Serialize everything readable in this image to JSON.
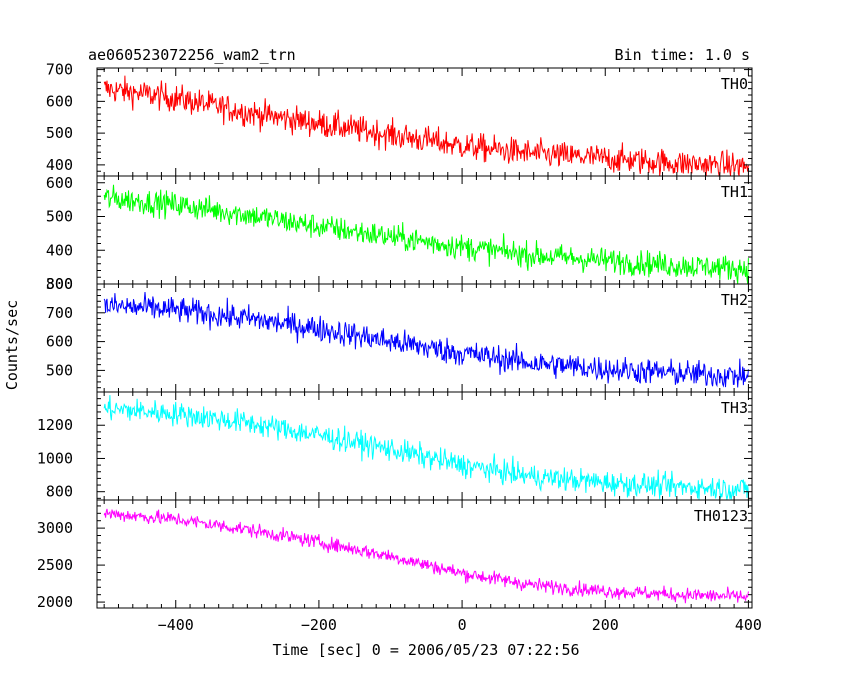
{
  "header": {
    "title": "ae060523072256_wam2_trn",
    "bin_time": "Bin time: 1.0 s"
  },
  "chart_data": {
    "type": "line",
    "xlabel": "Time [sec] 0 = 2006/05/23 07:22:56",
    "ylabel": "Counts/sec",
    "xlim": [
      -510,
      405
    ],
    "x_ticks": [
      -400,
      -200,
      0,
      200,
      400
    ],
    "x_tick_labels": [
      "−400",
      "−200",
      "0",
      "200",
      "400"
    ],
    "x_range": [
      -500,
      400
    ],
    "panels": [
      {
        "name": "TH0",
        "color": "#ff0000",
        "ylim": [
          365,
          705
        ],
        "y_ticks": [
          400,
          500,
          600,
          700
        ],
        "trend": [
          [
            -500,
            640
          ],
          [
            -400,
            610
          ],
          [
            -300,
            565
          ],
          [
            -200,
            530
          ],
          [
            -100,
            495
          ],
          [
            0,
            460
          ],
          [
            100,
            435
          ],
          [
            200,
            420
          ],
          [
            300,
            405
          ],
          [
            400,
            395
          ]
        ],
        "noise_sd": 22
      },
      {
        "name": "TH1",
        "color": "#00ff00",
        "ylim": [
          300,
          620
        ],
        "y_ticks": [
          300,
          400,
          500,
          600
        ],
        "trend": [
          [
            -500,
            555
          ],
          [
            -400,
            535
          ],
          [
            -300,
            505
          ],
          [
            -200,
            470
          ],
          [
            -100,
            440
          ],
          [
            0,
            410
          ],
          [
            100,
            385
          ],
          [
            200,
            370
          ],
          [
            300,
            355
          ],
          [
            400,
            345
          ]
        ],
        "noise_sd": 19
      },
      {
        "name": "TH2",
        "color": "#0000ff",
        "ylim": [
          425,
          800
        ],
        "y_ticks": [
          500,
          600,
          700,
          800
        ],
        "trend": [
          [
            -500,
            725
          ],
          [
            -400,
            710
          ],
          [
            -300,
            680
          ],
          [
            -200,
            645
          ],
          [
            -100,
            600
          ],
          [
            0,
            560
          ],
          [
            100,
            525
          ],
          [
            200,
            505
          ],
          [
            300,
            490
          ],
          [
            400,
            480
          ]
        ],
        "noise_sd": 23
      },
      {
        "name": "TH3",
        "color": "#00ffff",
        "ylim": [
          750,
          1400
        ],
        "y_ticks": [
          800,
          1000,
          1200
        ],
        "trend": [
          [
            -500,
            1300
          ],
          [
            -400,
            1270
          ],
          [
            -300,
            1215
          ],
          [
            -200,
            1140
          ],
          [
            -100,
            1055
          ],
          [
            0,
            960
          ],
          [
            100,
            890
          ],
          [
            200,
            855
          ],
          [
            300,
            830
          ],
          [
            400,
            815
          ]
        ],
        "noise_sd": 36
      },
      {
        "name": "TH0123",
        "color": "#ff00ff",
        "ylim": [
          1920,
          3380
        ],
        "y_ticks": [
          2000,
          2500,
          3000
        ],
        "trend": [
          [
            -500,
            3200
          ],
          [
            -400,
            3120
          ],
          [
            -300,
            2980
          ],
          [
            -200,
            2810
          ],
          [
            -100,
            2620
          ],
          [
            0,
            2390
          ],
          [
            100,
            2230
          ],
          [
            200,
            2150
          ],
          [
            300,
            2100
          ],
          [
            400,
            2070
          ]
        ],
        "noise_sd": 48
      }
    ]
  }
}
